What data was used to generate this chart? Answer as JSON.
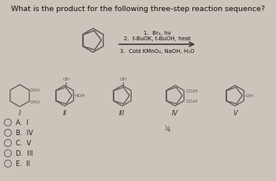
{
  "title": "What is the product for the following three-step reaction sequence?",
  "title_fontsize": 6.8,
  "background_color": "#ccc4ba",
  "reaction_steps_above": [
    "1.  Br₂, hν",
    "2.  t-BuOK, t-BuOH, heat"
  ],
  "reaction_step_below": "3.  Cold KMnO₄, NaOH, H₂O",
  "answer_choices": [
    "A.  I",
    "B.  IV",
    "C.  V",
    "D.  III",
    "E.  II"
  ],
  "compound_labels": [
    "I",
    "II",
    "III",
    "IV",
    "V"
  ],
  "bg": "#ccc4ba"
}
